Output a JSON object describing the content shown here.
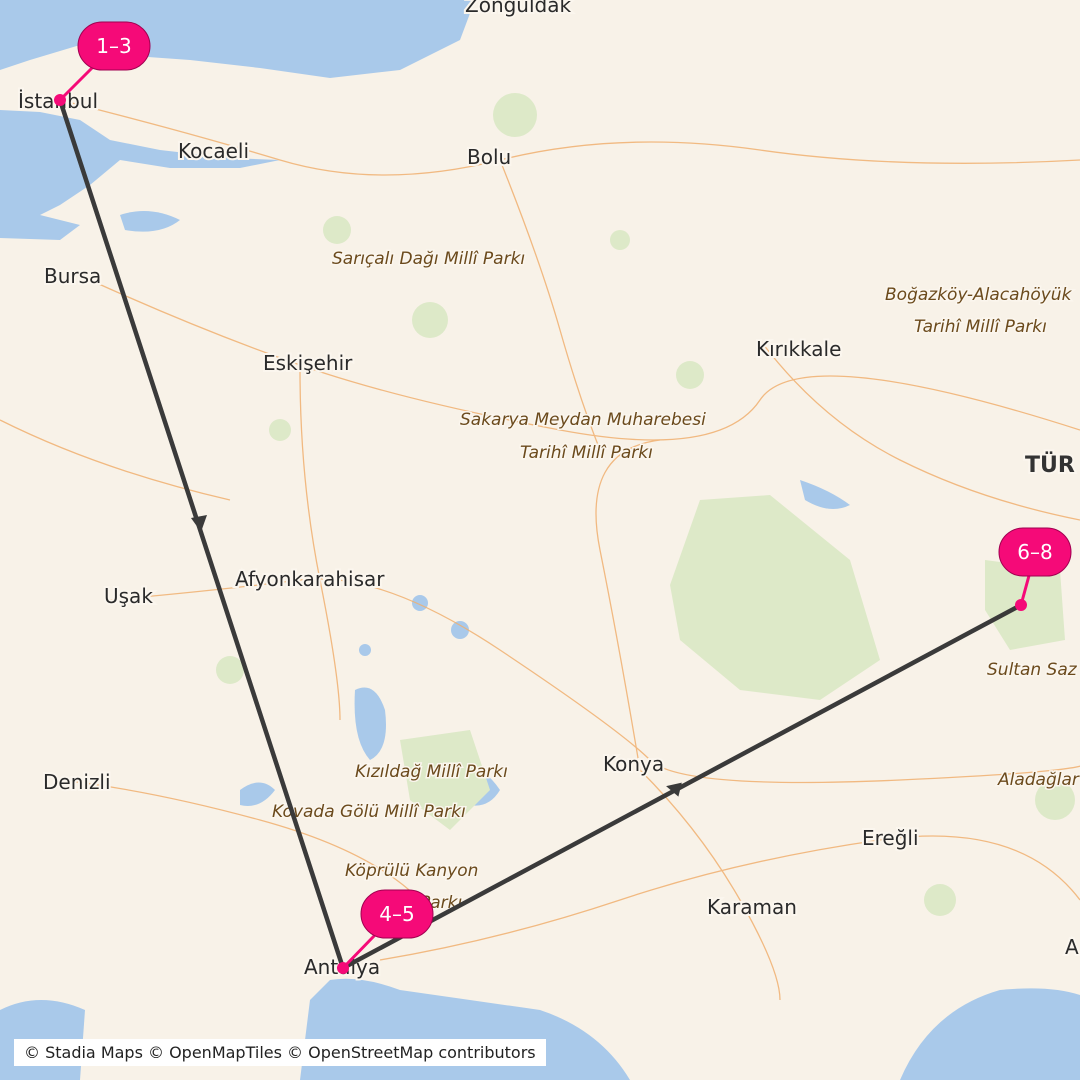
{
  "map": {
    "cities": [
      "İstanbul",
      "Kocaeli",
      "Bolu",
      "Bursa",
      "Eskişehir",
      "Kırıkkale",
      "Afyonkarahisar",
      "Uşak",
      "Denizli",
      "Konya",
      "Ereğli",
      "Karaman",
      "Antalya",
      "Zonguldak"
    ],
    "parks": [
      "Sarıçalı Dağı Millî Parkı",
      "Boğazköy-Alacahöyük",
      "Tarihî Millî Parkı",
      "Sakarya Meydan Muharebesi",
      "Tarihî Millî Parkı",
      "Kızıldağ Millî Parkı",
      "Kovada Gölü Millî Parkı",
      "Köprülü Kanyon",
      "Parkı",
      "Sultan Saz",
      "Aladağlar"
    ],
    "country": "TÜR",
    "edge_label": "A",
    "markers": [
      {
        "label": "1–3",
        "place": "İstanbul"
      },
      {
        "label": "4–5",
        "place": "Antalya"
      },
      {
        "label": "6–8",
        "place": "Sultan Sazlığı"
      }
    ],
    "colors": {
      "marker": "#f50a78",
      "route": "#3a3a3a",
      "water": "#a9c9ea",
      "land": "#f8f2e8",
      "park": "#dde9c8",
      "road": "#f0b070"
    },
    "attribution": "© Stadia Maps © OpenMapTiles © OpenStreetMap contributors"
  }
}
